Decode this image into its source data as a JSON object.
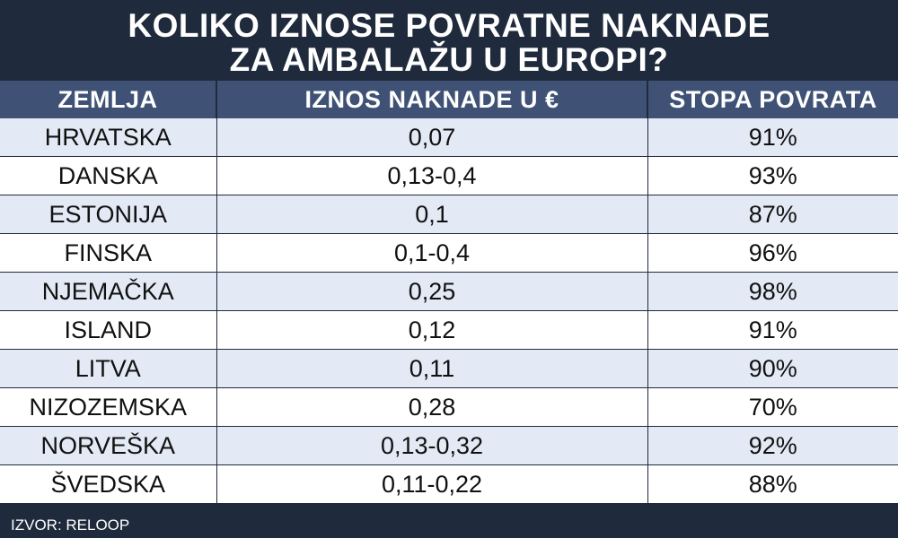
{
  "title": {
    "line1": "KOLIKO IZNOSE POVRATNE NAKNADE",
    "line2": "ZA AMBALAŽU U EUROPI?"
  },
  "columns": [
    "ZEMLJA",
    "IZNOS NAKNADE U €",
    "STOPA POVRATA"
  ],
  "rows": [
    {
      "country": "HRVATSKA",
      "fee": "0,07",
      "rate": "91%"
    },
    {
      "country": "DANSKA",
      "fee": "0,13-0,4",
      "rate": "93%"
    },
    {
      "country": "ESTONIJA",
      "fee": "0,1",
      "rate": "87%"
    },
    {
      "country": "FINSKA",
      "fee": "0,1-0,4",
      "rate": "96%"
    },
    {
      "country": "NJEMAČKA",
      "fee": "0,25",
      "rate": "98%"
    },
    {
      "country": "ISLAND",
      "fee": "0,12",
      "rate": "91%"
    },
    {
      "country": "LITVA",
      "fee": "0,11",
      "rate": "90%"
    },
    {
      "country": "NIZOZEMSKA",
      "fee": "0,28",
      "rate": "70%"
    },
    {
      "country": "NORVEŠKA",
      "fee": "0,13-0,32",
      "rate": "92%"
    },
    {
      "country": "ŠVEDSKA",
      "fee": "0,11-0,22",
      "rate": "88%"
    }
  ],
  "source": "IZVOR: RELOOP",
  "colors": {
    "background": "#1f2a3c",
    "header": "#3f5276",
    "row_alt": "#e3eaf5",
    "row": "#ffffff"
  }
}
